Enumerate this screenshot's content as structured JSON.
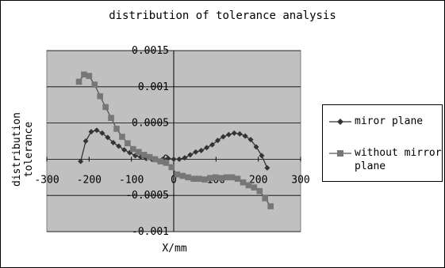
{
  "chart_data": {
    "type": "line",
    "title": "distribution of tolerance analysis",
    "xlabel": "X/mm",
    "ylabel": "distribution tolerance",
    "xlim": [
      -300,
      300
    ],
    "ylim": [
      -0.001,
      0.0015
    ],
    "xticks": [
      "-300",
      "-200",
      "-100",
      "0",
      "100",
      "200",
      "300"
    ],
    "yticks": [
      "-0.001",
      "-0.0005",
      "0",
      "0.0005",
      "0.001",
      "0.0015"
    ],
    "grid": true,
    "legend_position": "right",
    "series": [
      {
        "name": "miror plane",
        "marker": "diamond",
        "color": "#333333",
        "points": [
          [
            -220,
            -3e-05
          ],
          [
            -208,
            0.00025
          ],
          [
            -195,
            0.00038
          ],
          [
            -182,
            0.0004
          ],
          [
            -169,
            0.00036
          ],
          [
            -156,
            0.0003
          ],
          [
            -143,
            0.00023
          ],
          [
            -130,
            0.00018
          ],
          [
            -117,
            0.00013
          ],
          [
            -104,
            9e-05
          ],
          [
            -91,
            5e-05
          ],
          [
            -78,
            3e-05
          ],
          [
            -65,
            1e-05
          ],
          [
            -52,
            0.0
          ],
          [
            -39,
            -1e-05
          ],
          [
            -26,
            0.0
          ],
          [
            -13,
            1e-05
          ],
          [
            0,
            0.0
          ],
          [
            13,
            0.0
          ],
          [
            26,
            2e-05
          ],
          [
            39,
            6e-05
          ],
          [
            52,
            0.0001
          ],
          [
            65,
            0.00012
          ],
          [
            78,
            0.00016
          ],
          [
            91,
            0.0002
          ],
          [
            104,
            0.00026
          ],
          [
            117,
            0.00031
          ],
          [
            130,
            0.00034
          ],
          [
            143,
            0.00036
          ],
          [
            156,
            0.00035
          ],
          [
            169,
            0.00032
          ],
          [
            182,
            0.00027
          ],
          [
            195,
            0.00017
          ],
          [
            208,
            5e-05
          ],
          [
            221,
            -0.00012
          ]
        ]
      },
      {
        "name": "without mirror plane",
        "marker": "square",
        "color": "#555555",
        "points": [
          [
            -224,
            0.00107
          ],
          [
            -212,
            0.00117
          ],
          [
            -200,
            0.00115
          ],
          [
            -187,
            0.00103
          ],
          [
            -174,
            0.00087
          ],
          [
            -161,
            0.00072
          ],
          [
            -148,
            0.00057
          ],
          [
            -135,
            0.00042
          ],
          [
            -122,
            0.00031
          ],
          [
            -109,
            0.00022
          ],
          [
            -96,
            0.00014
          ],
          [
            -83,
            0.0001
          ],
          [
            -70,
            6e-05
          ],
          [
            -57,
            3e-05
          ],
          [
            -44,
            0.0
          ],
          [
            -31,
            -3e-05
          ],
          [
            -18,
            -5e-05
          ],
          [
            -5,
            -0.00011
          ],
          [
            8,
            -0.00021
          ],
          [
            21,
            -0.00023
          ],
          [
            34,
            -0.00025
          ],
          [
            47,
            -0.00027
          ],
          [
            60,
            -0.00027
          ],
          [
            73,
            -0.00028
          ],
          [
            86,
            -0.00026
          ],
          [
            99,
            -0.00025
          ],
          [
            112,
            -0.00026
          ],
          [
            125,
            -0.00025
          ],
          [
            138,
            -0.00025
          ],
          [
            151,
            -0.00027
          ],
          [
            164,
            -0.00032
          ],
          [
            177,
            -0.00036
          ],
          [
            190,
            -0.00039
          ],
          [
            203,
            -0.00044
          ],
          [
            216,
            -0.00054
          ],
          [
            229,
            -0.00065
          ]
        ]
      }
    ]
  }
}
